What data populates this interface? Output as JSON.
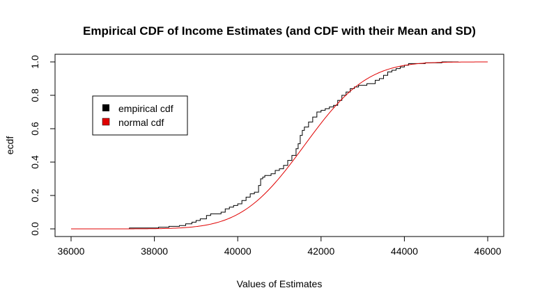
{
  "chart_data": {
    "type": "line",
    "title": "Empirical CDF of Income Estimates (and CDF with their Mean and SD)",
    "xlabel": "Values of Estimates",
    "ylabel": "ecdf",
    "xlim": [
      36000,
      46000
    ],
    "ylim": [
      0,
      1
    ],
    "x_ticks": [
      "36000",
      "38000",
      "40000",
      "42000",
      "44000",
      "46000"
    ],
    "y_ticks": [
      "0.0",
      "0.2",
      "0.4",
      "0.6",
      "0.8",
      "1.0"
    ],
    "grid": false,
    "legend_position": "top-left",
    "series": [
      {
        "name": "empirical cdf",
        "color": "#000000",
        "style": "step",
        "x": [
          37400,
          38100,
          38350,
          38600,
          38750,
          38900,
          39000,
          39100,
          39250,
          39350,
          39450,
          39600,
          39700,
          39800,
          39900,
          40000,
          40100,
          40200,
          40300,
          40400,
          40500,
          40550,
          40600,
          40650,
          40700,
          40800,
          40900,
          41000,
          41100,
          41200,
          41300,
          41400,
          41450,
          41500,
          41550,
          41600,
          41700,
          41800,
          41900,
          42000,
          42100,
          42200,
          42300,
          42400,
          42500,
          42600,
          42700,
          42800,
          42900,
          43000,
          43100,
          43200,
          43300,
          43400,
          43500,
          43600,
          43700,
          43800,
          43900,
          44000,
          44100,
          44300,
          44500,
          44900,
          45300
        ],
        "y": [
          0.005,
          0.01,
          0.015,
          0.02,
          0.03,
          0.04,
          0.05,
          0.06,
          0.08,
          0.09,
          0.09,
          0.1,
          0.12,
          0.13,
          0.14,
          0.15,
          0.17,
          0.19,
          0.21,
          0.22,
          0.26,
          0.3,
          0.31,
          0.32,
          0.32,
          0.33,
          0.35,
          0.36,
          0.38,
          0.41,
          0.44,
          0.48,
          0.51,
          0.56,
          0.59,
          0.61,
          0.64,
          0.67,
          0.7,
          0.71,
          0.72,
          0.73,
          0.74,
          0.77,
          0.8,
          0.82,
          0.84,
          0.85,
          0.86,
          0.86,
          0.87,
          0.87,
          0.89,
          0.9,
          0.92,
          0.94,
          0.95,
          0.96,
          0.97,
          0.98,
          0.99,
          0.99,
          0.995,
          1.0,
          1.0
        ]
      },
      {
        "name": "normal cdf",
        "color": "#e00000",
        "style": "line",
        "mean": 41600,
        "sd": 1180,
        "x_range": [
          36000,
          46000
        ]
      }
    ]
  }
}
